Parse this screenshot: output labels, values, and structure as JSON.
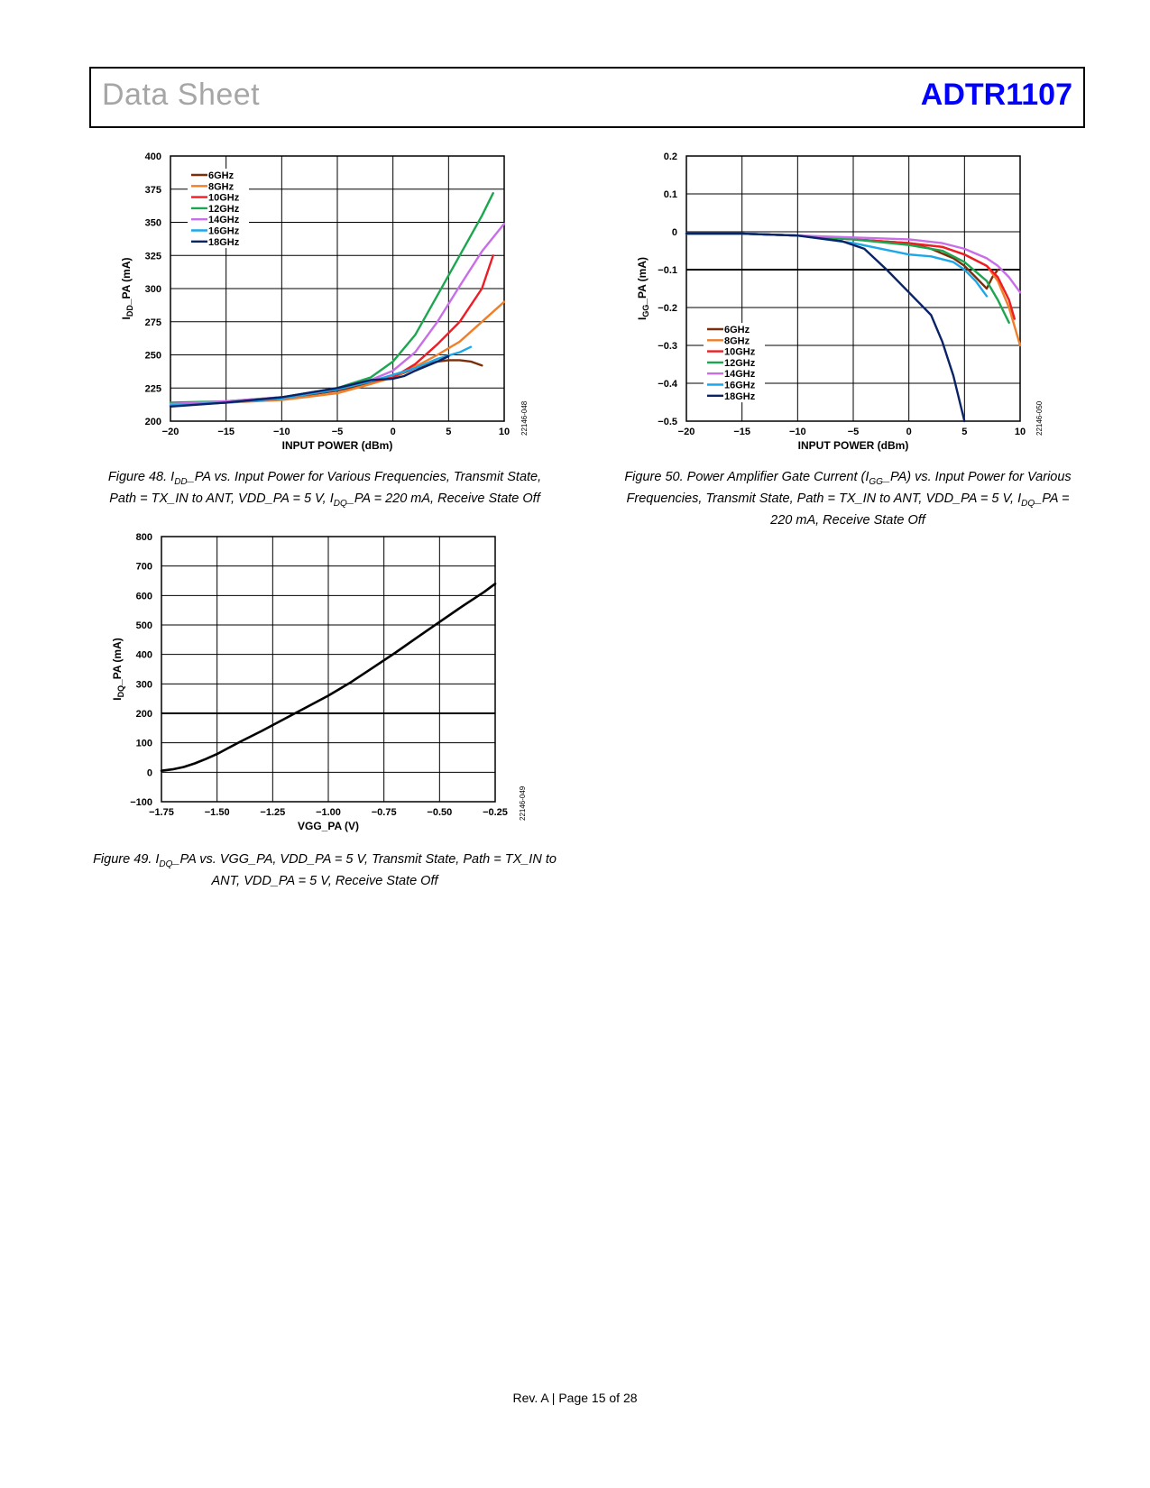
{
  "header": {
    "left": "Data Sheet",
    "right": "ADTR1107"
  },
  "footer": "Rev. A | Page 15 of 28",
  "captions": {
    "fig48": {
      "a": "Figure 48. I",
      "a_sub": "DD",
      "b": "_PA vs. Input Power for Various Frequencies, Transmit State,",
      "c": "Path = TX_IN to ANT, VDD_PA = 5 V, I",
      "c_sub": "DQ",
      "d": "_PA = 220 mA, Receive State Off"
    },
    "fig49": {
      "a": "Figure 49. I",
      "a_sub": "DQ",
      "b": "_PA vs. VGG_PA, VDD_PA = 5 V, Transmit State, Path = TX_IN to",
      "c": "ANT, VDD_PA = 5 V, Receive State Off"
    },
    "fig50": {
      "a": "Figure 50. Power Amplifier Gate Current (I",
      "a_sub": "GG",
      "b": "_PA) vs. Input Power for Various",
      "c": "Frequencies, Transmit State, Path = TX_IN to ANT, VDD_PA = 5 V, I",
      "c_sub": "DQ",
      "d": "_PA =",
      "e": "220 mA, Receive State Off"
    }
  },
  "chart_data": [
    {
      "id": "fig48",
      "type": "line",
      "code": "22146-048",
      "xlabel": "INPUT POWER (dBm)",
      "ylabel_main": "I",
      "ylabel_sub": "DD",
      "ylabel_rest": "_PA (mA)",
      "xlim": [
        -20,
        10
      ],
      "ylim": [
        200,
        400
      ],
      "xticks": [
        -20,
        -15,
        -10,
        -5,
        0,
        5,
        10
      ],
      "xtick_labels": [
        "−20",
        "−15",
        "−10",
        "−5",
        "0",
        "5",
        "10"
      ],
      "yticks": [
        200,
        225,
        250,
        275,
        300,
        325,
        350,
        375,
        400
      ],
      "ytick_labels": [
        "200",
        "225",
        "250",
        "275",
        "300",
        "325",
        "350",
        "375",
        "400"
      ],
      "grid": true,
      "legend_position": "top-left",
      "series": [
        {
          "name": "6GHz",
          "color": "#7b2e0a",
          "x": [
            -20,
            -15,
            -10,
            -5,
            -2,
            0,
            2,
            4,
            5,
            6,
            7,
            8
          ],
          "y": [
            212,
            214,
            217,
            223,
            229,
            233,
            240,
            245,
            246,
            246,
            245,
            242
          ]
        },
        {
          "name": "8GHz",
          "color": "#f07f2a",
          "x": [
            -20,
            -15,
            -10,
            -5,
            -2,
            0,
            2,
            4,
            6,
            8,
            10
          ],
          "y": [
            213,
            214,
            216,
            221,
            228,
            233,
            241,
            250,
            260,
            275,
            290
          ]
        },
        {
          "name": "10GHz",
          "color": "#ee1c24",
          "x": [
            -20,
            -15,
            -10,
            -5,
            -2,
            0,
            2,
            4,
            6,
            8,
            9
          ],
          "y": [
            213,
            214,
            217,
            224,
            230,
            233,
            243,
            258,
            275,
            300,
            325
          ]
        },
        {
          "name": "12GHz",
          "color": "#1da650",
          "x": [
            -20,
            -15,
            -10,
            -5,
            -2,
            0,
            2,
            4,
            6,
            8,
            9
          ],
          "y": [
            214,
            215,
            218,
            225,
            233,
            245,
            265,
            295,
            325,
            355,
            372
          ]
        },
        {
          "name": "14GHz",
          "color": "#c86ee8",
          "x": [
            -20,
            -15,
            -10,
            -5,
            -2,
            0,
            2,
            4,
            6,
            8,
            10
          ],
          "y": [
            213,
            215,
            218,
            225,
            231,
            238,
            252,
            275,
            302,
            328,
            349
          ]
        },
        {
          "name": "16GHz",
          "color": "#1ca8e8",
          "x": [
            -20,
            -15,
            -10,
            -5,
            -2,
            0,
            2,
            4,
            6,
            7
          ],
          "y": [
            212,
            214,
            217,
            224,
            230,
            235,
            240,
            247,
            252,
            256
          ]
        },
        {
          "name": "18GHz",
          "color": "#0a2266",
          "x": [
            -20,
            -15,
            -10,
            -5,
            -2,
            0,
            1,
            2,
            4,
            5
          ],
          "y": [
            211,
            214,
            218,
            225,
            231,
            232,
            234,
            238,
            245,
            249
          ]
        }
      ]
    },
    {
      "id": "fig49",
      "type": "line",
      "code": "22146-049",
      "xlabel": "VGG_PA (V)",
      "ylabel_main": "I",
      "ylabel_sub": "DQ",
      "ylabel_rest": "_PA (mA)",
      "xlim": [
        -1.75,
        -0.25
      ],
      "ylim": [
        -100,
        800
      ],
      "xticks": [
        -1.75,
        -1.5,
        -1.25,
        -1.0,
        -0.75,
        -0.5,
        -0.25
      ],
      "xtick_labels": [
        "−1.75",
        "−1.50",
        "−1.25",
        "−1.00",
        "−0.75",
        "−0.50",
        "−0.25"
      ],
      "yticks": [
        -100,
        0,
        100,
        200,
        300,
        400,
        500,
        600,
        700,
        800
      ],
      "ytick_labels": [
        "−100",
        "0",
        "100",
        "200",
        "300",
        "400",
        "500",
        "600",
        "700",
        "800"
      ],
      "grid": true,
      "series": [
        {
          "name": "",
          "color": "#000000",
          "x": [
            -1.75,
            -1.7,
            -1.65,
            -1.6,
            -1.55,
            -1.5,
            -1.45,
            -1.4,
            -1.3,
            -1.2,
            -1.1,
            -1.0,
            -0.9,
            -0.8,
            -0.7,
            -0.6,
            -0.5,
            -0.4,
            -0.3,
            -0.25
          ],
          "y": [
            5,
            10,
            18,
            30,
            45,
            62,
            82,
            102,
            140,
            180,
            220,
            260,
            305,
            355,
            405,
            458,
            510,
            562,
            612,
            640
          ]
        }
      ]
    },
    {
      "id": "fig50",
      "type": "line",
      "code": "22146-050",
      "xlabel": "INPUT POWER (dBm)",
      "ylabel_main": "I",
      "ylabel_sub": "GG",
      "ylabel_rest": "_PA (mA)",
      "xlim": [
        -20,
        10
      ],
      "ylim": [
        -0.5,
        0.2
      ],
      "xticks": [
        -20,
        -15,
        -10,
        -5,
        0,
        5,
        10
      ],
      "xtick_labels": [
        "−20",
        "−15",
        "−10",
        "−5",
        "0",
        "5",
        "10"
      ],
      "yticks": [
        -0.5,
        -0.4,
        -0.3,
        -0.2,
        -0.1,
        0,
        0.1,
        0.2
      ],
      "ytick_labels": [
        "−0.5",
        "−0.4",
        "−0.3",
        "−0.2",
        "−0.1",
        "0",
        "0.1",
        "0.2"
      ],
      "grid": true,
      "legend_position": "bottom-left",
      "series": [
        {
          "name": "6GHz",
          "color": "#7b2e0a",
          "x": [
            -20,
            -15,
            -10,
            -5,
            0,
            2,
            4,
            5,
            6,
            7,
            7.5,
            8
          ],
          "y": [
            -0.005,
            -0.005,
            -0.01,
            -0.02,
            -0.03,
            -0.045,
            -0.07,
            -0.09,
            -0.12,
            -0.15,
            -0.12,
            -0.1
          ]
        },
        {
          "name": "8GHz",
          "color": "#f07f2a",
          "x": [
            -20,
            -15,
            -10,
            -5,
            0,
            3,
            5,
            7,
            8,
            9,
            10
          ],
          "y": [
            -0.005,
            -0.005,
            -0.01,
            -0.02,
            -0.03,
            -0.04,
            -0.06,
            -0.09,
            -0.13,
            -0.2,
            -0.3
          ]
        },
        {
          "name": "10GHz",
          "color": "#ee1c24",
          "x": [
            -20,
            -15,
            -10,
            -5,
            0,
            3,
            5,
            7,
            8,
            9,
            9.5
          ],
          "y": [
            -0.005,
            -0.005,
            -0.01,
            -0.02,
            -0.03,
            -0.04,
            -0.06,
            -0.09,
            -0.12,
            -0.18,
            -0.23
          ]
        },
        {
          "name": "12GHz",
          "color": "#1da650",
          "x": [
            -20,
            -15,
            -10,
            -5,
            0,
            3,
            5,
            7,
            8,
            9
          ],
          "y": [
            -0.005,
            -0.005,
            -0.01,
            -0.02,
            -0.035,
            -0.05,
            -0.08,
            -0.13,
            -0.18,
            -0.24
          ]
        },
        {
          "name": "14GHz",
          "color": "#c86ee8",
          "x": [
            -20,
            -15,
            -10,
            -5,
            0,
            3,
            5,
            7,
            8,
            9,
            10
          ],
          "y": [
            -0.005,
            -0.005,
            -0.01,
            -0.015,
            -0.02,
            -0.03,
            -0.045,
            -0.07,
            -0.09,
            -0.12,
            -0.16
          ]
        },
        {
          "name": "16GHz",
          "color": "#1ca8e8",
          "x": [
            -20,
            -15,
            -10,
            -5,
            0,
            2,
            4,
            5,
            6,
            7
          ],
          "y": [
            -0.005,
            -0.005,
            -0.01,
            -0.03,
            -0.06,
            -0.065,
            -0.08,
            -0.1,
            -0.13,
            -0.17
          ]
        },
        {
          "name": "18GHz",
          "color": "#0a2266",
          "x": [
            -20,
            -15,
            -10,
            -6,
            -4,
            -2,
            0,
            2,
            3,
            4,
            5
          ],
          "y": [
            -0.005,
            -0.005,
            -0.01,
            -0.025,
            -0.045,
            -0.1,
            -0.16,
            -0.22,
            -0.29,
            -0.38,
            -0.5
          ]
        }
      ]
    }
  ]
}
